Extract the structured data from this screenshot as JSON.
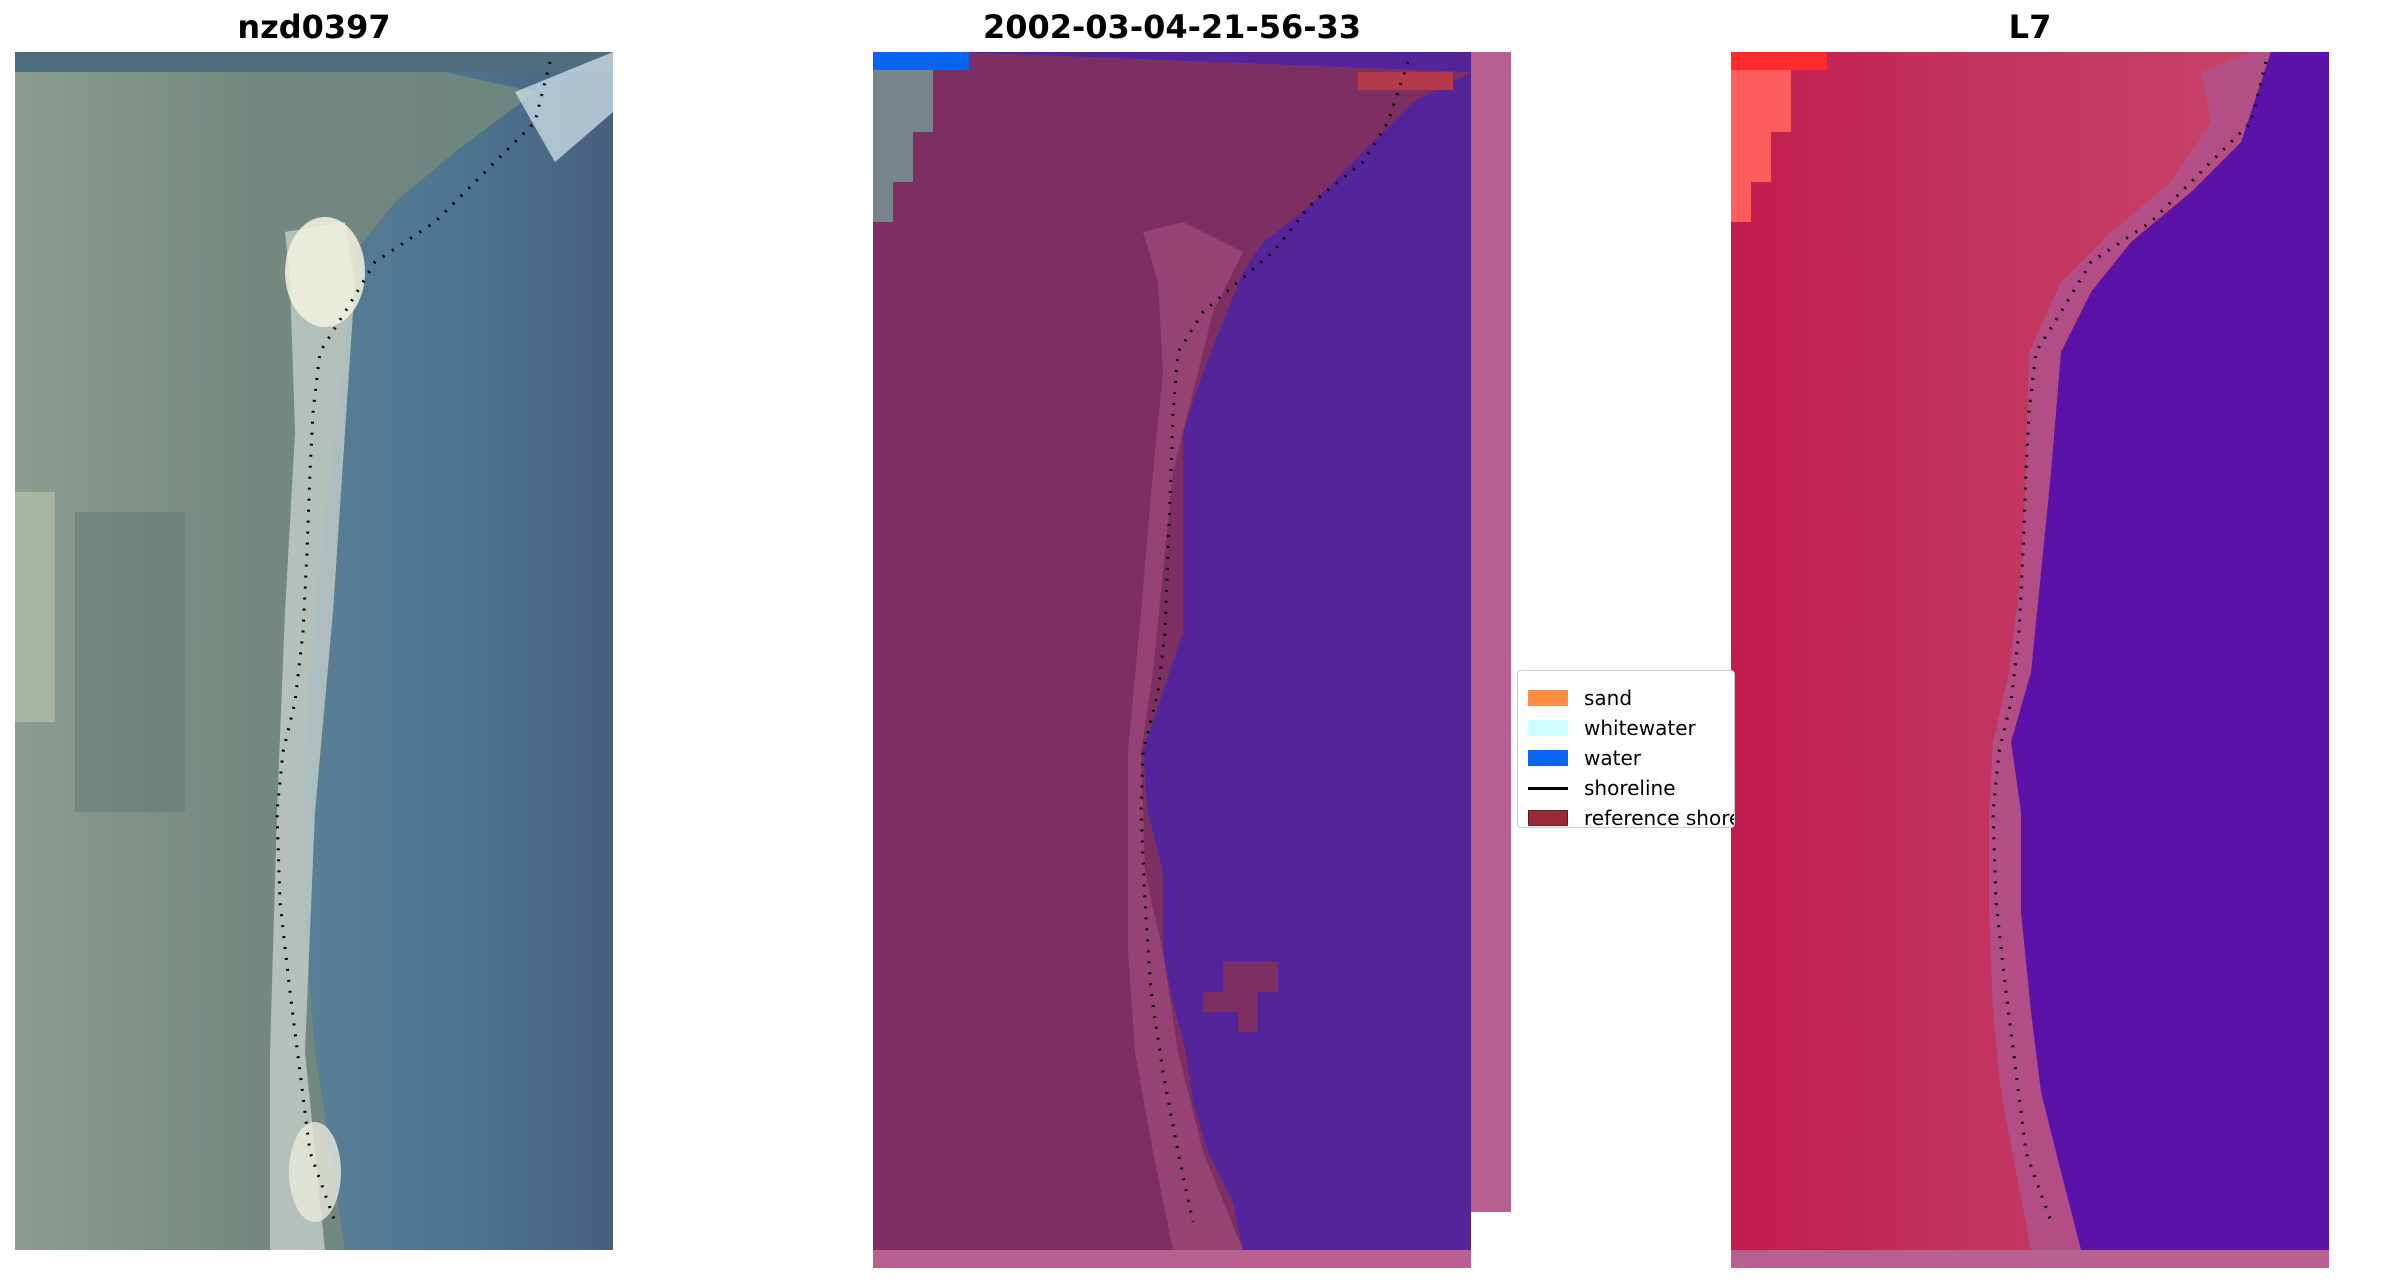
{
  "panels": [
    {
      "title": "nzd0397",
      "kind": "rgb"
    },
    {
      "title": "2002-03-04-21-56-33",
      "kind": "classified"
    },
    {
      "title": "L7",
      "kind": "index"
    }
  ],
  "legend": {
    "items": [
      {
        "label": "sand",
        "color": "#ff8c42",
        "type": "patch"
      },
      {
        "label": "whitewater",
        "color": "#ccffff",
        "type": "patch"
      },
      {
        "label": "water",
        "color": "#0a64f0",
        "type": "patch"
      },
      {
        "label": "shoreline",
        "color": "#000000",
        "type": "line"
      },
      {
        "label": "reference shoreline buffer",
        "color": "#9b2b3a",
        "type": "patch"
      }
    ]
  },
  "colors": {
    "land_rgb": "#7d8f87",
    "water_rgb": "#4a6f8f",
    "classified_land": "#7e2f62",
    "classified_water": "#53249a",
    "buffer_strip": "#b8608f",
    "index_land": "#c2275a",
    "index_water": "#5a12a8"
  }
}
